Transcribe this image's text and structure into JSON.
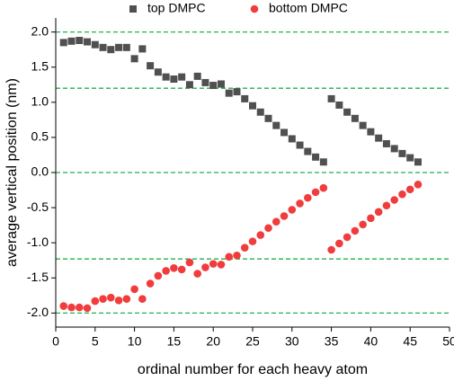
{
  "chart_data": {
    "type": "scatter",
    "x_label": "ordinal number for each heavy atom",
    "y_label": "average vertical position (nm)",
    "x": [
      1,
      2,
      3,
      4,
      5,
      6,
      7,
      8,
      9,
      10,
      11,
      12,
      13,
      14,
      15,
      16,
      17,
      18,
      19,
      20,
      21,
      22,
      23,
      24,
      25,
      26,
      27,
      28,
      29,
      30,
      31,
      32,
      33,
      34,
      35,
      36,
      37,
      38,
      39,
      40,
      41,
      42,
      43,
      44,
      45,
      46
    ],
    "series": [
      {
        "name": "top DMPC",
        "color": "#505050",
        "marker": "square",
        "values": [
          1.85,
          1.87,
          1.88,
          1.86,
          1.82,
          1.78,
          1.75,
          1.78,
          1.78,
          1.62,
          1.76,
          1.52,
          1.43,
          1.36,
          1.33,
          1.36,
          1.25,
          1.37,
          1.28,
          1.24,
          1.26,
          1.13,
          1.15,
          1.05,
          0.95,
          0.86,
          0.77,
          0.67,
          0.57,
          0.48,
          0.39,
          0.3,
          0.22,
          0.15,
          1.05,
          0.96,
          0.86,
          0.77,
          0.67,
          0.58,
          0.49,
          0.41,
          0.34,
          0.27,
          0.21,
          0.15
        ]
      },
      {
        "name": "bottom DMPC",
        "color": "#f03c3c",
        "marker": "circle",
        "values": [
          -1.9,
          -1.92,
          -1.92,
          -1.93,
          -1.83,
          -1.8,
          -1.78,
          -1.82,
          -1.8,
          -1.66,
          -1.8,
          -1.58,
          -1.47,
          -1.4,
          -1.36,
          -1.38,
          -1.28,
          -1.44,
          -1.35,
          -1.3,
          -1.31,
          -1.2,
          -1.18,
          -1.07,
          -0.98,
          -0.89,
          -0.79,
          -0.7,
          -0.62,
          -0.53,
          -0.44,
          -0.36,
          -0.28,
          -0.22,
          -1.1,
          -1.01,
          -0.92,
          -0.83,
          -0.74,
          -0.65,
          -0.56,
          -0.47,
          -0.39,
          -0.31,
          -0.24,
          -0.17
        ]
      }
    ],
    "xlim": [
      0,
      50
    ],
    "ylim": [
      -2.2,
      2.2
    ],
    "xticks": [
      0,
      5,
      10,
      15,
      20,
      25,
      30,
      35,
      40,
      45,
      50
    ],
    "yticks": [
      {
        "value": -2,
        "label": "-2.0"
      },
      {
        "value": -1.5,
        "label": "-1.5"
      },
      {
        "value": -1,
        "label": "-1.0"
      },
      {
        "value": -0.5,
        "label": "-0.5"
      },
      {
        "value": 0,
        "label": "0.0"
      },
      {
        "value": 0.5,
        "label": "0.5"
      },
      {
        "value": 1,
        "label": "1.0"
      },
      {
        "value": 1.5,
        "label": "1.5"
      },
      {
        "value": 2,
        "label": "2.0"
      }
    ],
    "reference_lines": {
      "color": "#22b04a",
      "values": [
        2.0,
        1.2,
        0,
        -1.23,
        -2.0
      ]
    },
    "legend": "top"
  }
}
